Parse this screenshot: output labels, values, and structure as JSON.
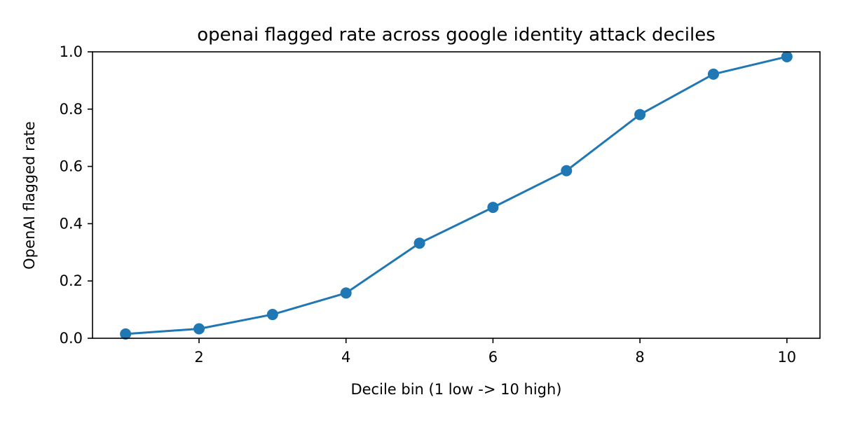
{
  "chart_data": {
    "type": "line",
    "title": "openai flagged rate across google identity attack deciles",
    "xlabel": "Decile bin (1 low -> 10 high)",
    "ylabel": "OpenAI flagged rate",
    "x": [
      1,
      2,
      3,
      4,
      5,
      6,
      7,
      8,
      9,
      10
    ],
    "series": [
      {
        "values": [
          0.015,
          0.033,
          0.083,
          0.158,
          0.332,
          0.457,
          0.585,
          0.781,
          0.922,
          0.983
        ],
        "color": "#1f77b4",
        "marker": "circle"
      }
    ],
    "xlim": [
      0.55,
      10.45
    ],
    "ylim": [
      0,
      1.0
    ],
    "xticks": [
      2,
      4,
      6,
      8,
      10
    ],
    "xtick_labels": [
      "2",
      "4",
      "6",
      "8",
      "10"
    ],
    "yticks": [
      0,
      0.2,
      0.4,
      0.6,
      0.8,
      1.0
    ],
    "ytick_labels": [
      "0.0",
      "0.2",
      "0.4",
      "0.6",
      "0.8",
      "1.0"
    ],
    "grid": false,
    "legend": false
  }
}
